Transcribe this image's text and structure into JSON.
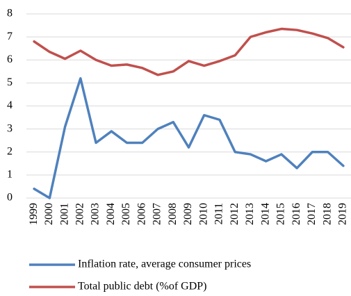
{
  "chart_data": {
    "type": "line",
    "categories": [
      "1999",
      "2000",
      "2001",
      "2002",
      "2003",
      "2004",
      "2005",
      "2006",
      "2007",
      "2008",
      "2009",
      "2010",
      "2011",
      "2012",
      "2013",
      "2014",
      "2015",
      "2016",
      "2017",
      "2018",
      "2019"
    ],
    "series": [
      {
        "name": "Inflation rate, average consumer prices",
        "color": "#4f81bd",
        "values": [
          0.4,
          0.0,
          3.1,
          5.2,
          2.4,
          2.9,
          2.4,
          2.4,
          3.0,
          3.3,
          2.2,
          3.6,
          3.4,
          2.0,
          1.9,
          1.6,
          1.9,
          1.3,
          2.0,
          2.0,
          1.4
        ]
      },
      {
        "name": "Total public debt (%of GDP)",
        "color": "#c0504d",
        "values": [
          6.8,
          6.35,
          6.05,
          6.4,
          6.0,
          5.75,
          5.8,
          5.65,
          5.35,
          5.5,
          5.95,
          5.75,
          5.95,
          6.2,
          7.0,
          7.2,
          7.35,
          7.3,
          7.15,
          6.95,
          6.55
        ]
      }
    ],
    "ylim": [
      0,
      8
    ],
    "yticks": [
      0,
      1,
      2,
      3,
      4,
      5,
      6,
      7,
      8
    ],
    "grid": true
  }
}
